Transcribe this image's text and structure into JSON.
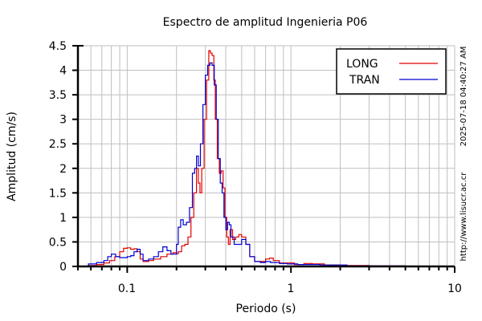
{
  "chart_data": {
    "type": "line",
    "title": "Espectro de amplitud Ingenieria P06",
    "xlabel": "Periodo (s)",
    "ylabel": "Amplitud (cm/s)",
    "xscale": "log",
    "xlim": [
      0.05,
      10
    ],
    "ylim": [
      0,
      4.5
    ],
    "grid": true,
    "legend_position": "upper right",
    "x_ticks": [
      {
        "value": 0.1,
        "label": "0.1"
      },
      {
        "value": 1,
        "label": "1"
      },
      {
        "value": 10,
        "label": "10"
      }
    ],
    "y_ticks": [
      {
        "value": 0,
        "label": "0"
      },
      {
        "value": 0.5,
        "label": "0.5"
      },
      {
        "value": 1,
        "label": "1"
      },
      {
        "value": 1.5,
        "label": "1.5"
      },
      {
        "value": 2,
        "label": "2"
      },
      {
        "value": 2.5,
        "label": "2.5"
      },
      {
        "value": 3,
        "label": "3"
      },
      {
        "value": 3.5,
        "label": "3.5"
      },
      {
        "value": 4,
        "label": "4"
      },
      {
        "value": 4.5,
        "label": "4.5"
      }
    ],
    "series": [
      {
        "name": "LONG",
        "color": "#e00000",
        "points": [
          [
            0.052,
            0.0
          ],
          [
            0.058,
            0.02
          ],
          [
            0.065,
            0.04
          ],
          [
            0.072,
            0.07
          ],
          [
            0.078,
            0.12
          ],
          [
            0.084,
            0.2
          ],
          [
            0.09,
            0.3
          ],
          [
            0.095,
            0.37
          ],
          [
            0.1,
            0.38
          ],
          [
            0.105,
            0.35
          ],
          [
            0.11,
            0.36
          ],
          [
            0.115,
            0.3
          ],
          [
            0.12,
            0.15
          ],
          [
            0.125,
            0.1
          ],
          [
            0.135,
            0.12
          ],
          [
            0.145,
            0.15
          ],
          [
            0.16,
            0.2
          ],
          [
            0.175,
            0.25
          ],
          [
            0.19,
            0.28
          ],
          [
            0.2,
            0.26
          ],
          [
            0.205,
            0.3
          ],
          [
            0.215,
            0.42
          ],
          [
            0.225,
            0.45
          ],
          [
            0.235,
            0.6
          ],
          [
            0.245,
            1.0
          ],
          [
            0.255,
            1.5
          ],
          [
            0.265,
            2.0
          ],
          [
            0.272,
            1.7
          ],
          [
            0.278,
            1.5
          ],
          [
            0.285,
            2.0
          ],
          [
            0.295,
            3.0
          ],
          [
            0.305,
            3.8
          ],
          [
            0.315,
            4.4
          ],
          [
            0.322,
            4.35
          ],
          [
            0.33,
            4.3
          ],
          [
            0.338,
            3.8
          ],
          [
            0.345,
            3.0
          ],
          [
            0.355,
            2.2
          ],
          [
            0.365,
            1.9
          ],
          [
            0.375,
            1.95
          ],
          [
            0.385,
            1.6
          ],
          [
            0.395,
            1.0
          ],
          [
            0.405,
            0.6
          ],
          [
            0.415,
            0.45
          ],
          [
            0.425,
            0.75
          ],
          [
            0.44,
            0.55
          ],
          [
            0.46,
            0.6
          ],
          [
            0.48,
            0.65
          ],
          [
            0.5,
            0.6
          ],
          [
            0.53,
            0.45
          ],
          [
            0.56,
            0.2
          ],
          [
            0.6,
            0.1
          ],
          [
            0.65,
            0.1
          ],
          [
            0.7,
            0.15
          ],
          [
            0.74,
            0.17
          ],
          [
            0.78,
            0.12
          ],
          [
            0.85,
            0.07
          ],
          [
            0.95,
            0.07
          ],
          [
            1.05,
            0.04
          ],
          [
            1.2,
            0.06
          ],
          [
            1.35,
            0.05
          ],
          [
            1.6,
            0.03
          ],
          [
            2.0,
            0.02
          ],
          [
            2.3,
            0.02
          ],
          [
            3.0,
            0.01
          ],
          [
            5.0,
            0.0
          ],
          [
            10.0,
            0.0
          ]
        ]
      },
      {
        "name": "TRAN",
        "color": "#0000d0",
        "points": [
          [
            0.052,
            0.0
          ],
          [
            0.058,
            0.05
          ],
          [
            0.065,
            0.08
          ],
          [
            0.072,
            0.12
          ],
          [
            0.076,
            0.2
          ],
          [
            0.08,
            0.25
          ],
          [
            0.085,
            0.2
          ],
          [
            0.09,
            0.18
          ],
          [
            0.1,
            0.2
          ],
          [
            0.105,
            0.22
          ],
          [
            0.11,
            0.3
          ],
          [
            0.115,
            0.35
          ],
          [
            0.12,
            0.25
          ],
          [
            0.125,
            0.12
          ],
          [
            0.135,
            0.15
          ],
          [
            0.145,
            0.2
          ],
          [
            0.155,
            0.3
          ],
          [
            0.165,
            0.4
          ],
          [
            0.175,
            0.32
          ],
          [
            0.185,
            0.25
          ],
          [
            0.195,
            0.25
          ],
          [
            0.2,
            0.45
          ],
          [
            0.205,
            0.8
          ],
          [
            0.212,
            0.95
          ],
          [
            0.22,
            0.85
          ],
          [
            0.23,
            0.9
          ],
          [
            0.24,
            1.2
          ],
          [
            0.25,
            1.9
          ],
          [
            0.258,
            2.0
          ],
          [
            0.265,
            2.25
          ],
          [
            0.272,
            2.05
          ],
          [
            0.28,
            2.5
          ],
          [
            0.29,
            3.3
          ],
          [
            0.3,
            3.9
          ],
          [
            0.31,
            4.1
          ],
          [
            0.32,
            4.15
          ],
          [
            0.33,
            4.1
          ],
          [
            0.34,
            3.7
          ],
          [
            0.35,
            3.0
          ],
          [
            0.36,
            2.2
          ],
          [
            0.37,
            1.7
          ],
          [
            0.38,
            1.5
          ],
          [
            0.39,
            1.0
          ],
          [
            0.4,
            0.75
          ],
          [
            0.41,
            0.9
          ],
          [
            0.42,
            0.85
          ],
          [
            0.43,
            0.6
          ],
          [
            0.45,
            0.45
          ],
          [
            0.47,
            0.45
          ],
          [
            0.5,
            0.55
          ],
          [
            0.53,
            0.45
          ],
          [
            0.56,
            0.2
          ],
          [
            0.6,
            0.1
          ],
          [
            0.65,
            0.08
          ],
          [
            0.7,
            0.1
          ],
          [
            0.75,
            0.08
          ],
          [
            0.85,
            0.06
          ],
          [
            0.95,
            0.05
          ],
          [
            1.1,
            0.04
          ],
          [
            1.3,
            0.04
          ],
          [
            1.5,
            0.03
          ],
          [
            1.8,
            0.03
          ],
          [
            2.2,
            0.01
          ],
          [
            3.0,
            0.01
          ],
          [
            5.0,
            0.0
          ],
          [
            10.0,
            0.0
          ]
        ]
      }
    ]
  },
  "header": {
    "title": "Espectro de amplitud Ingenieria P06"
  },
  "axes": {
    "xlabel": "Periodo (s)",
    "ylabel": "Amplitud (cm/s)",
    "x_tick_labels": [
      "0.1",
      "1",
      "10"
    ],
    "y_tick_labels": [
      "0",
      "0.5",
      "1",
      "1.5",
      "2",
      "2.5",
      "3",
      "3.5",
      "4",
      "4.5"
    ]
  },
  "legend": {
    "items": [
      {
        "label": "LONG",
        "color": "#e00000"
      },
      {
        "label": "TRAN",
        "color": "#0000d0"
      }
    ]
  },
  "side": {
    "timestamp": "2025-07-18 04:40:27 AM",
    "url": "http://www.lisucr.ac.cr"
  }
}
